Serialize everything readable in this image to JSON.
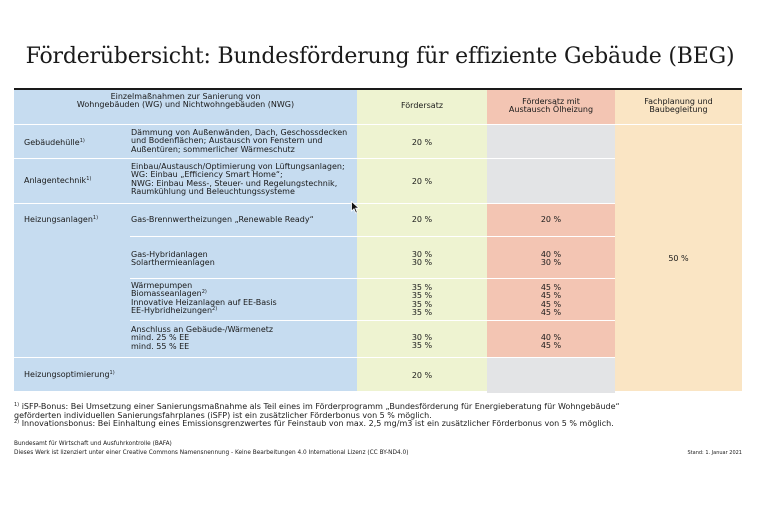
{
  "title": "Förderübersicht: Bundesförderung für effiziente Gebäude (BEG)",
  "headers": {
    "measures_line1": "Einzelmaßnahmen zur Sanierung von",
    "measures_line2": "Wohngebäuden (WG) und Nichtwohngebäuden (NWG)",
    "rate": "Fördersatz",
    "oil_line1": "Fördersatz mit",
    "oil_line2": "Austausch Ölheizung",
    "planning_line1": "Fachplanung und",
    "planning_line2": "Baubegleitung"
  },
  "rows": {
    "huelle": {
      "category": "Gebäudehülle",
      "sup": "1)",
      "desc": [
        "Dämmung von Außenwänden, Dach, Geschossdecken",
        "und Bodenflächen; Austausch von Fenstern und",
        "Außentüren; sommerlicher Wärmeschutz"
      ],
      "rate": "20 %"
    },
    "anlagen": {
      "category": "Anlagentechnik",
      "sup": "1)",
      "desc": [
        "Einbau/Austausch/Optimierung von Lüftungsanlagen;",
        "WG: Einbau „Efficiency Smart Home“;",
        "NWG: Einbau Mess-, Steuer- und Regelungstechnik,",
        "Raumkühlung und Beleuchtungssysteme"
      ],
      "rate": "20 %"
    },
    "heizung": {
      "category": "Heizungsanlagen",
      "sup": "1)",
      "gas_desc": "Gas-Brennwertheizungen „Renewable Ready“",
      "gas_rate": "20 %",
      "gas_oil": "20 %",
      "hybrid_desc": [
        "Gas-Hybridanlagen",
        "Solarthermieanlagen"
      ],
      "hybrid_rate": [
        "30 %",
        "30 %"
      ],
      "hybrid_oil": [
        "40 %",
        "30 %"
      ],
      "wp_desc": [
        "Wärmepumpen",
        "Biomasseanlagen",
        "Innovative Heizanlagen auf EE-Basis",
        "EE-Hybridheizungen"
      ],
      "wp_sup": "2)",
      "wp_rate": [
        "35 %",
        "35 %",
        "35 %",
        "35 %"
      ],
      "wp_oil": [
        "45 %",
        "45 %",
        "45 %",
        "45 %"
      ],
      "netz_desc": [
        "Anschluss an Gebäude-/Wärmenetz",
        "mind. 25 % EE",
        "mind. 55 % EE"
      ],
      "netz_rate": [
        "30 %",
        "35 %"
      ],
      "netz_oil": [
        "40 %",
        "45 %"
      ]
    },
    "optim": {
      "category": "Heizungsoptimierung",
      "sup": "1)",
      "rate": "20 %"
    }
  },
  "planning_value": "50 %",
  "footnotes": {
    "fn1_sup": "1)",
    "fn1_line1": "iSFP-Bonus: Bei Umsetzung einer Sanierungsmaßnahme als Teil eines im Förderprogramm „Bundesförderung für Energieberatung für Wohngebäude“",
    "fn1_line2": "geförderten individuellen Sanierungsfahrplanes (iSFP) ist ein zusätzlicher Förderbonus von 5 % möglich.",
    "fn2_sup": "2)",
    "fn2_line1": "Innovationsbonus: Bei Einhaltung eines Emissionsgrenzwertes für Feinstaub von max. 2,5 mg/m3 ist ein zusätzlicher Förderbonus von 5 % möglich."
  },
  "publisher": "Bundesamt für Wirtschaft und Ausfuhrkontrolle (BAFA)",
  "license": "Dieses Werk ist lizenziert unter einer Creative Commons Namensnennung - Keine Bearbeitungen 4.0 International Lizenz (CC BY-ND4.0)",
  "stand": "Stand: 1. Januar 2021"
}
